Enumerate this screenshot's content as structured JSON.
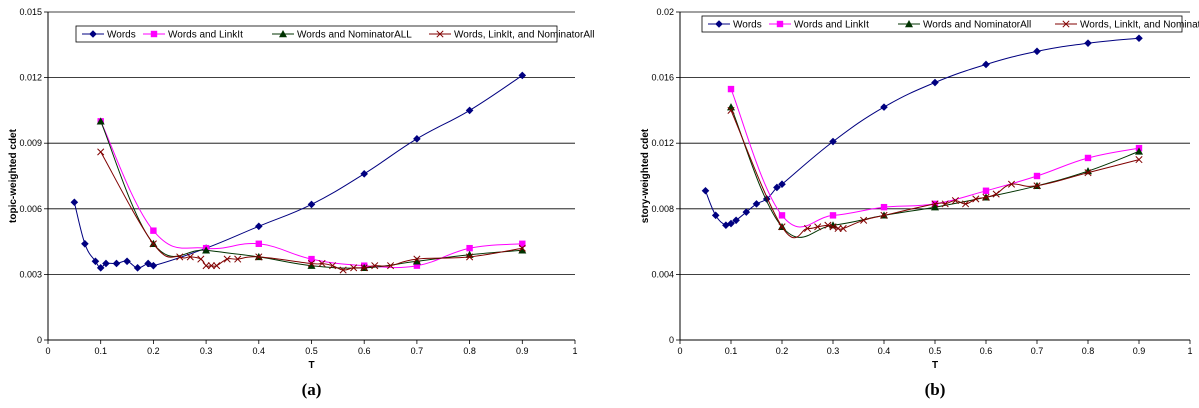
{
  "chart_data": [
    {
      "type": "line",
      "panel_label": "(a)",
      "xlabel": "T",
      "ylabel": "topic-weighted cdet",
      "xlim": [
        0,
        1
      ],
      "ylim": [
        0,
        0.015
      ],
      "x_ticks": [
        "0",
        "0.1",
        "0.2",
        "0.3",
        "0.4",
        "0.5",
        "0.6",
        "0.7",
        "0.8",
        "0.9",
        "1"
      ],
      "y_ticks": [
        "0",
        "0.003",
        "0.006",
        "0.009",
        "0.012",
        "0.015"
      ],
      "grid": "horizontal",
      "legend_position": "top",
      "series": [
        {
          "name": "Words",
          "color": "#000080",
          "marker": "diamond",
          "x": [
            0.05,
            0.07,
            0.09,
            0.1,
            0.11,
            0.13,
            0.15,
            0.17,
            0.19,
            0.2,
            0.3,
            0.4,
            0.5,
            0.6,
            0.7,
            0.8,
            0.9
          ],
          "y": [
            0.0063,
            0.0044,
            0.0036,
            0.0033,
            0.0035,
            0.0035,
            0.0036,
            0.0033,
            0.0035,
            0.0034,
            0.0042,
            0.0052,
            0.0062,
            0.0076,
            0.0092,
            0.0105,
            0.0121
          ]
        },
        {
          "name": "Words and LinkIt",
          "color": "#ff00ff",
          "marker": "square",
          "x": [
            0.1,
            0.2,
            0.3,
            0.4,
            0.5,
            0.6,
            0.7,
            0.8,
            0.9
          ],
          "y": [
            0.01,
            0.005,
            0.0042,
            0.0044,
            0.0037,
            0.0034,
            0.0034,
            0.0042,
            0.0044
          ]
        },
        {
          "name": "Words and NominatorALL",
          "color": "#003300",
          "marker": "triangle",
          "x": [
            0.1,
            0.2,
            0.3,
            0.4,
            0.5,
            0.6,
            0.7,
            0.8,
            0.9
          ],
          "y": [
            0.01,
            0.0044,
            0.0041,
            0.0038,
            0.0034,
            0.0033,
            0.0036,
            0.0039,
            0.0041
          ]
        },
        {
          "name": "Words, LinkIt, and NominatorAll",
          "color": "#800000",
          "marker": "x",
          "x": [
            0.1,
            0.2,
            0.25,
            0.27,
            0.29,
            0.3,
            0.31,
            0.32,
            0.34,
            0.36,
            0.4,
            0.5,
            0.52,
            0.54,
            0.56,
            0.58,
            0.6,
            0.62,
            0.65,
            0.7,
            0.8,
            0.9
          ],
          "y": [
            0.0086,
            0.0044,
            0.0038,
            0.0038,
            0.0037,
            0.0034,
            0.0034,
            0.0034,
            0.0037,
            0.0037,
            0.0038,
            0.0035,
            0.0035,
            0.0034,
            0.0032,
            0.0033,
            0.0033,
            0.0034,
            0.0034,
            0.0037,
            0.0038,
            0.0042
          ]
        }
      ]
    },
    {
      "type": "line",
      "panel_label": "(b)",
      "xlabel": "T",
      "ylabel": "story-weighted cdet",
      "xlim": [
        0,
        1
      ],
      "ylim": [
        0,
        0.02
      ],
      "x_ticks": [
        "0",
        "0.1",
        "0.2",
        "0.3",
        "0.4",
        "0.5",
        "0.6",
        "0.7",
        "0.8",
        "0.9",
        "1"
      ],
      "y_ticks": [
        "0",
        "0.004",
        "0.008",
        "0.012",
        "0.016",
        "0.02"
      ],
      "grid": "horizontal",
      "legend_position": "top",
      "series": [
        {
          "name": "Words",
          "color": "#000080",
          "marker": "diamond",
          "x": [
            0.05,
            0.07,
            0.09,
            0.1,
            0.11,
            0.13,
            0.15,
            0.17,
            0.19,
            0.2,
            0.3,
            0.4,
            0.5,
            0.6,
            0.7,
            0.8,
            0.9
          ],
          "y": [
            0.0091,
            0.0076,
            0.007,
            0.0071,
            0.0073,
            0.0078,
            0.0083,
            0.0086,
            0.0093,
            0.0095,
            0.0121,
            0.0142,
            0.0157,
            0.0168,
            0.0176,
            0.0181,
            0.0184
          ]
        },
        {
          "name": "Words and LinkIt",
          "color": "#ff00ff",
          "marker": "square",
          "x": [
            0.1,
            0.2,
            0.3,
            0.4,
            0.5,
            0.6,
            0.7,
            0.8,
            0.9
          ],
          "y": [
            0.0153,
            0.0076,
            0.0076,
            0.0081,
            0.0083,
            0.0091,
            0.01,
            0.0111,
            0.0117
          ]
        },
        {
          "name": "Words and NominatorAll",
          "color": "#003300",
          "marker": "triangle",
          "x": [
            0.1,
            0.2,
            0.3,
            0.4,
            0.5,
            0.6,
            0.7,
            0.8,
            0.9
          ],
          "y": [
            0.0142,
            0.0069,
            0.007,
            0.0076,
            0.0081,
            0.0087,
            0.0094,
            0.0103,
            0.0115
          ]
        },
        {
          "name": "Words, LinkIt, and NominatorAll",
          "color": "#800000",
          "marker": "x",
          "x": [
            0.1,
            0.2,
            0.25,
            0.27,
            0.29,
            0.3,
            0.31,
            0.32,
            0.36,
            0.4,
            0.5,
            0.52,
            0.54,
            0.56,
            0.58,
            0.6,
            0.62,
            0.65,
            0.7,
            0.8,
            0.9
          ],
          "y": [
            0.014,
            0.0069,
            0.0068,
            0.0069,
            0.007,
            0.0069,
            0.0068,
            0.0068,
            0.0073,
            0.0076,
            0.0083,
            0.0083,
            0.0085,
            0.0083,
            0.0086,
            0.0087,
            0.0089,
            0.0095,
            0.0094,
            0.0102,
            0.011
          ]
        }
      ]
    }
  ]
}
